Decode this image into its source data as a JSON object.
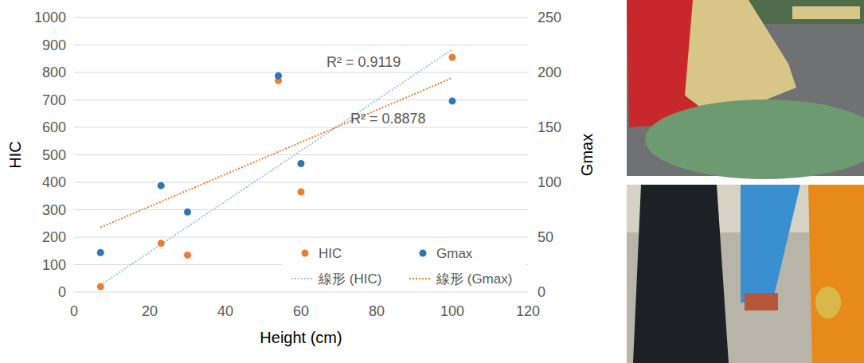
{
  "chart_data": {
    "type": "scatter",
    "x_label": "Height (cm)",
    "y_label": "HIC",
    "y2_label": "Gmax",
    "xlim": [
      0,
      120
    ],
    "xticks": [
      0,
      20,
      40,
      60,
      80,
      100,
      120
    ],
    "ylim": [
      0,
      1000
    ],
    "yticks": [
      0,
      100,
      200,
      300,
      400,
      500,
      600,
      700,
      800,
      900,
      1000
    ],
    "y2lim": [
      0,
      250
    ],
    "y2ticks": [
      0,
      50,
      100,
      150,
      200,
      250
    ],
    "grid": true,
    "legend": "lower right",
    "annotations": [
      "R² = 0.9119",
      "R² = 0.8878"
    ],
    "series": [
      {
        "name": "HIC",
        "type": "scatter",
        "marker": "circle",
        "color": "#ed7d31",
        "x": [
          7,
          23,
          30,
          54,
          60,
          100
        ],
        "values": [
          20,
          178,
          135,
          770,
          365,
          855
        ]
      },
      {
        "name": "Gmax",
        "type": "scatter",
        "marker": "circle",
        "color": "#2e75b6",
        "axis": "y2",
        "x": [
          7,
          23,
          30,
          54,
          60,
          100
        ],
        "values": [
          36,
          97,
          73,
          197,
          117,
          174
        ]
      },
      {
        "name": "線形 (HIC)",
        "type": "line",
        "line_style": "dotted",
        "color": "#9dc3e6",
        "x": [
          7,
          100
        ],
        "values": [
          26,
          884
        ]
      },
      {
        "name": "線形 (Gmax)",
        "type": "line",
        "line_style": "dotted",
        "color": "#ed7d31",
        "axis": "y2",
        "x": [
          7,
          100
        ],
        "values": [
          59,
          195
        ]
      }
    ]
  }
}
